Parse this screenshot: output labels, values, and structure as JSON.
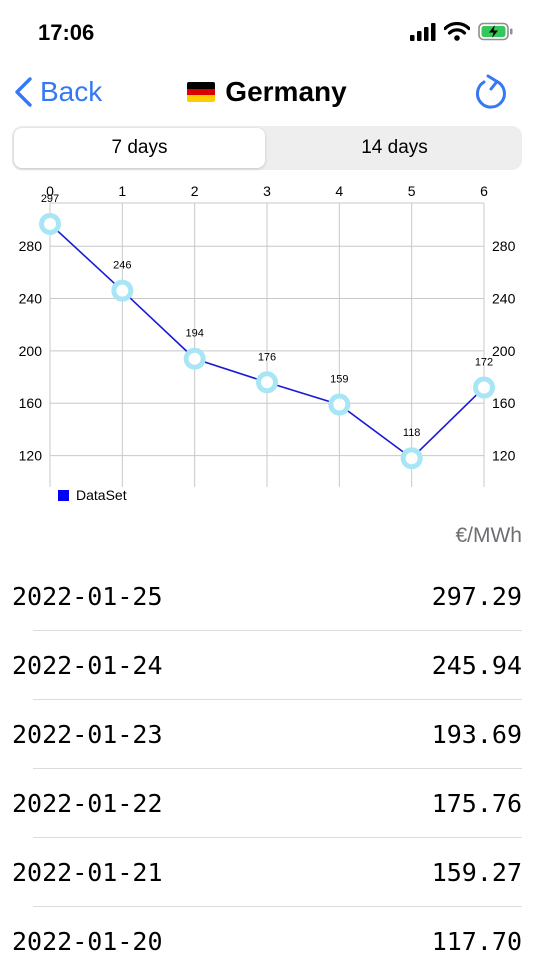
{
  "status_bar": {
    "time": "17:06",
    "icons": [
      "signal-icon",
      "wifi-icon",
      "battery-charging-icon"
    ]
  },
  "nav": {
    "back_label": "Back",
    "title": "Germany",
    "flag": "germany-flag-icon",
    "refresh": "refresh-icon"
  },
  "segments": [
    {
      "label": "7 days",
      "selected": true
    },
    {
      "label": "14 days",
      "selected": false
    }
  ],
  "colors": {
    "accent": "#3478F6",
    "line": "#1a1ad6",
    "point": "#a8e6f5",
    "legend": "#0000ff"
  },
  "chart_data": {
    "type": "line",
    "x": [
      0,
      1,
      2,
      3,
      4,
      5,
      6
    ],
    "series": [
      {
        "name": "DataSet",
        "values": [
          297,
          246,
          194,
          176,
          159,
          118,
          172
        ]
      }
    ],
    "data_labels": [
      "297",
      "246",
      "194",
      "176",
      "159",
      "118",
      "172"
    ],
    "x_ticks": [
      "0",
      "1",
      "2",
      "3",
      "4",
      "5",
      "6"
    ],
    "y_ticks": [
      120,
      160,
      200,
      240,
      280
    ],
    "xlim": [
      0,
      6
    ],
    "ylim": [
      96,
      313
    ],
    "grid": true,
    "legend": "bottom-left"
  },
  "unit": "€/MWh",
  "prices": [
    {
      "date": "2022-01-25",
      "value": "297.29"
    },
    {
      "date": "2022-01-24",
      "value": "245.94"
    },
    {
      "date": "2022-01-23",
      "value": "193.69"
    },
    {
      "date": "2022-01-22",
      "value": "175.76"
    },
    {
      "date": "2022-01-21",
      "value": "159.27"
    },
    {
      "date": "2022-01-20",
      "value": "117.70"
    }
  ]
}
